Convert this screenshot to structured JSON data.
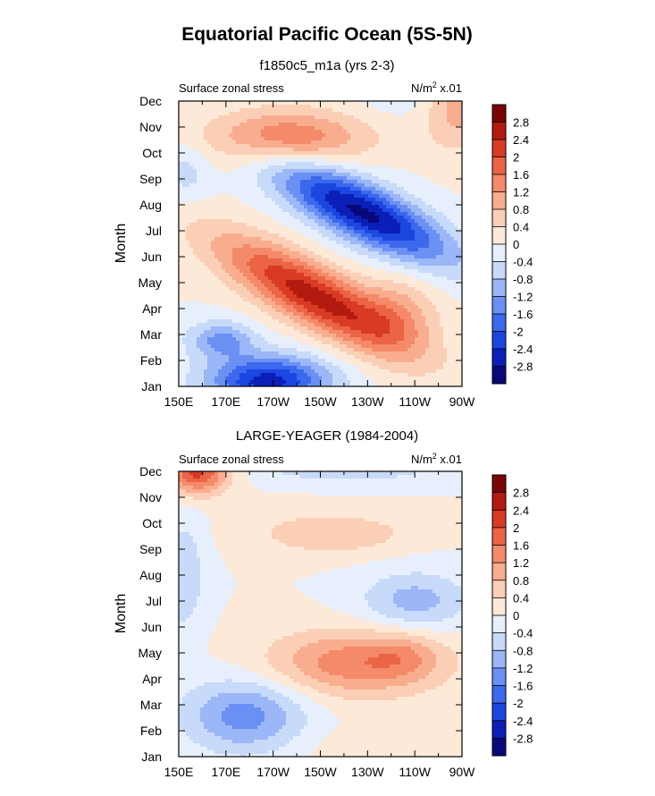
{
  "figure": {
    "title": "Equatorial Pacific Ocean (5S-5N)"
  },
  "colors": {
    "levels": [
      "#08087a",
      "#0b1fb8",
      "#1c46e0",
      "#3c68ee",
      "#6a90f4",
      "#9bb7f7",
      "#c8daf9",
      "#e6effb",
      "#fde9d8",
      "#fbcfb6",
      "#f9ad8f",
      "#f48a69",
      "#ea6445",
      "#d93a23",
      "#b41b10",
      "#7a0404"
    ]
  },
  "chart_data": [
    {
      "type": "heatmap",
      "title": "f1850c5_m1a (yrs 2-3)",
      "left_label": "Surface zonal stress",
      "right_label": "N/m",
      "right_label_sup": "2",
      "right_label_tail": " x.01",
      "ylabel": "Month",
      "x_ticks": [
        "150E",
        "170E",
        "170W",
        "150W",
        "130W",
        "110W",
        "90W"
      ],
      "x_range": [
        150,
        270
      ],
      "y_ticks": [
        "Jan",
        "Feb",
        "Mar",
        "Apr",
        "May",
        "Jun",
        "Jul",
        "Aug",
        "Sep",
        "Oct",
        "Nov",
        "Dec"
      ],
      "colorbar_labels": [
        "2.8",
        "2.4",
        "2",
        "1.6",
        "1.2",
        "0.8",
        "0.4",
        "0",
        "-0.4",
        "-0.8",
        "-1.2",
        "-1.6",
        "-2",
        "-2.4",
        "-2.8"
      ],
      "features": [
        {
          "lon": 207,
          "month": 3.5,
          "sigma_lon": 28,
          "sigma_month": 0.9,
          "amp": 2.6,
          "tilt": -0.045
        },
        {
          "lon": 243,
          "month": 2.8,
          "sigma_lon": 12,
          "sigma_month": 1.0,
          "amp": 0.9,
          "tilt": 0
        },
        {
          "lon": 188,
          "month": 0.2,
          "sigma_lon": 18,
          "sigma_month": 0.7,
          "amp": -2.6,
          "tilt": 0
        },
        {
          "lon": 168,
          "month": 1.8,
          "sigma_lon": 10,
          "sigma_month": 0.5,
          "amp": -1.3,
          "tilt": 0
        },
        {
          "lon": 228,
          "month": 6.7,
          "sigma_lon": 26,
          "sigma_month": 0.85,
          "amp": -2.9,
          "tilt": -0.04
        },
        {
          "lon": 195,
          "month": 9.6,
          "sigma_lon": 24,
          "sigma_month": 0.75,
          "amp": 1.6,
          "tilt": 0
        },
        {
          "lon": 268,
          "month": 10.8,
          "sigma_lon": 10,
          "sigma_month": 1.2,
          "amp": 1.0,
          "tilt": 0
        },
        {
          "lon": 153,
          "month": 8.3,
          "sigma_lon": 7,
          "sigma_month": 0.8,
          "amp": -0.6,
          "tilt": 0
        },
        {
          "lon": 245,
          "month": 11.2,
          "sigma_lon": 14,
          "sigma_month": 0.6,
          "amp": -0.3,
          "tilt": 0
        }
      ]
    },
    {
      "type": "heatmap",
      "title": "LARGE-YEAGER (1984-2004)",
      "left_label": "Surface zonal stress",
      "right_label": "N/m",
      "right_label_sup": "2",
      "right_label_tail": " x.01",
      "ylabel": "Month",
      "x_ticks": [
        "150E",
        "170E",
        "170W",
        "150W",
        "130W",
        "110W",
        "90W"
      ],
      "x_range": [
        150,
        270
      ],
      "y_ticks": [
        "Jan",
        "Feb",
        "Mar",
        "Apr",
        "May",
        "Jun",
        "Jul",
        "Aug",
        "Sep",
        "Oct",
        "Nov",
        "Dec"
      ],
      "colorbar_labels": [
        "2.8",
        "2.4",
        "2",
        "1.6",
        "1.2",
        "0.8",
        "0.4",
        "0",
        "-0.4",
        "-0.8",
        "-1.2",
        "-1.6",
        "-2",
        "-2.4",
        "-2.8"
      ],
      "features": [
        {
          "lon": 158,
          "month": 11.0,
          "sigma_lon": 9,
          "sigma_month": 0.6,
          "amp": 2.2,
          "tilt": 0
        },
        {
          "lon": 225,
          "month": 3.6,
          "sigma_lon": 26,
          "sigma_month": 0.9,
          "amp": 1.5,
          "tilt": 0
        },
        {
          "lon": 245,
          "month": 3.9,
          "sigma_lon": 10,
          "sigma_month": 0.6,
          "amp": 0.5,
          "tilt": 0
        },
        {
          "lon": 215,
          "month": 8.6,
          "sigma_lon": 22,
          "sigma_month": 0.55,
          "amp": 0.8,
          "tilt": 0
        },
        {
          "lon": 178,
          "month": 1.6,
          "sigma_lon": 18,
          "sigma_month": 1.0,
          "amp": -1.4,
          "tilt": 0
        },
        {
          "lon": 250,
          "month": 6.0,
          "sigma_lon": 16,
          "sigma_month": 0.8,
          "amp": -1.0,
          "tilt": 0
        },
        {
          "lon": 222,
          "month": 11.2,
          "sigma_lon": 26,
          "sigma_month": 0.4,
          "amp": -0.9,
          "tilt": 0
        },
        {
          "lon": 152,
          "month": 7.0,
          "sigma_lon": 6,
          "sigma_month": 1.5,
          "amp": -0.8,
          "tilt": 0
        },
        {
          "lon": 230,
          "month": 0.3,
          "sigma_lon": 20,
          "sigma_month": 0.6,
          "amp": 0.3,
          "tilt": 0
        }
      ]
    }
  ]
}
